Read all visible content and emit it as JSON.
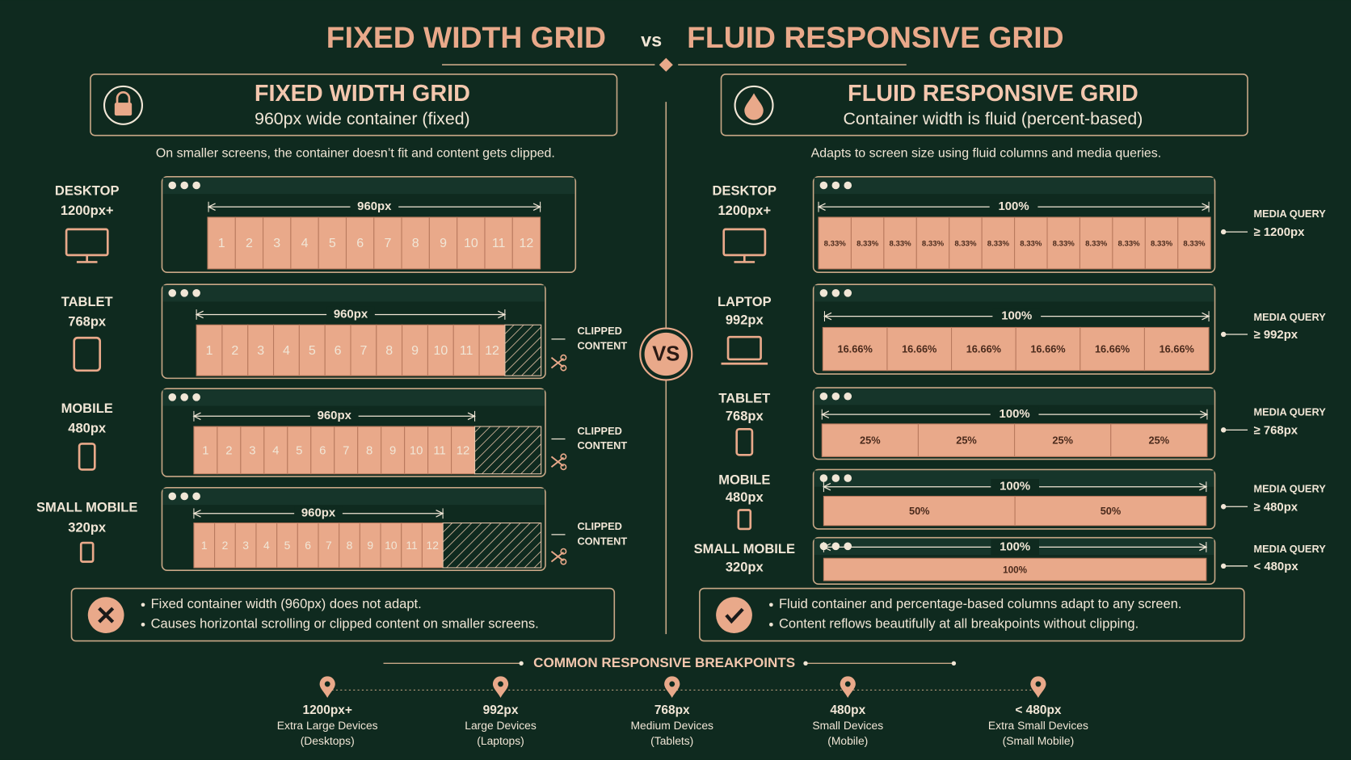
{
  "title": {
    "left": "FIXED WIDTH GRID",
    "vs": "vs",
    "right": "FLUID RESPONSIVE GRID"
  },
  "vs_badge": "VS",
  "fixed": {
    "heading": "FIXED WIDTH GRID",
    "subheading": "960px wide container (fixed)",
    "description": "On smaller screens, the container doesn’t fit and content gets clipped.",
    "rows": [
      {
        "device": "DESKTOP",
        "size": "1200px+",
        "width_label": "960px",
        "columns": [
          "1",
          "2",
          "3",
          "4",
          "5",
          "6",
          "7",
          "8",
          "9",
          "10",
          "11",
          "12"
        ]
      },
      {
        "device": "TABLET",
        "size": "768px",
        "width_label": "960px",
        "columns": [
          "1",
          "2",
          "3",
          "4",
          "5",
          "6",
          "7",
          "8",
          "9",
          "10",
          "11",
          "12"
        ],
        "clipped": [
          "CLIPPED",
          "CONTENT"
        ]
      },
      {
        "device": "MOBILE",
        "size": "480px",
        "width_label": "960px",
        "columns": [
          "1",
          "2",
          "3",
          "4",
          "5",
          "6",
          "7",
          "8",
          "9",
          "10",
          "11",
          "12"
        ],
        "clipped": [
          "CLIPPED",
          "CONTENT"
        ]
      },
      {
        "device": "SMALL MOBILE",
        "size": "320px",
        "width_label": "960px",
        "columns": [
          "1",
          "2",
          "3",
          "4",
          "5",
          "6",
          "7",
          "8",
          "9",
          "10",
          "11",
          "12"
        ],
        "clipped": [
          "CLIPPED",
          "CONTENT"
        ]
      }
    ],
    "summary": [
      "Fixed container width (960px) does not adapt.",
      "Causes horizontal scrolling or clipped content on smaller screens."
    ]
  },
  "fluid": {
    "heading": "FLUID RESPONSIVE GRID",
    "subheading": "Container width is fluid (percent-based)",
    "description": "Adapts to screen size using fluid columns and media queries.",
    "rows": [
      {
        "device": "DESKTOP",
        "size": "1200px+",
        "width_label": "100%",
        "columns": [
          "8.33%",
          "8.33%",
          "8.33%",
          "8.33%",
          "8.33%",
          "8.33%",
          "8.33%",
          "8.33%",
          "8.33%",
          "8.33%",
          "8.33%",
          "8.33%"
        ],
        "media_query_label": "MEDIA QUERY",
        "media_query": "≥ 1200px"
      },
      {
        "device": "LAPTOP",
        "size": "992px",
        "width_label": "100%",
        "columns": [
          "16.66%",
          "16.66%",
          "16.66%",
          "16.66%",
          "16.66%",
          "16.66%"
        ],
        "media_query_label": "MEDIA QUERY",
        "media_query": "≥ 992px"
      },
      {
        "device": "TABLET",
        "size": "768px",
        "width_label": "100%",
        "columns": [
          "25%",
          "25%",
          "25%",
          "25%"
        ],
        "media_query_label": "MEDIA QUERY",
        "media_query": "≥ 768px"
      },
      {
        "device": "MOBILE",
        "size": "480px",
        "width_label": "100%",
        "columns": [
          "50%",
          "50%"
        ],
        "media_query_label": "MEDIA QUERY",
        "media_query": "≥ 480px"
      },
      {
        "device": "SMALL MOBILE",
        "size": "320px",
        "width_label": "100%",
        "columns": [
          "100%"
        ],
        "media_query_label": "MEDIA QUERY",
        "media_query": "< 480px"
      }
    ],
    "summary": [
      "Fluid container and percentage-based columns adapt to any screen.",
      "Content reflows beautifully at all breakpoints without clipping."
    ]
  },
  "breakpoints": {
    "title": "COMMON RESPONSIVE BREAKPOINTS",
    "items": [
      {
        "size": "1200px+",
        "name": "Extra Large Devices",
        "devices": "(Desktops)"
      },
      {
        "size": "992px",
        "name": "Large Devices",
        "devices": "(Laptops)"
      },
      {
        "size": "768px",
        "name": "Medium Devices",
        "devices": "(Tablets)"
      },
      {
        "size": "480px",
        "name": "Small Devices",
        "devices": "(Mobile)"
      },
      {
        "size": "< 480px",
        "name": "Extra Small Devices",
        "devices": "(Small Mobile)"
      }
    ]
  }
}
